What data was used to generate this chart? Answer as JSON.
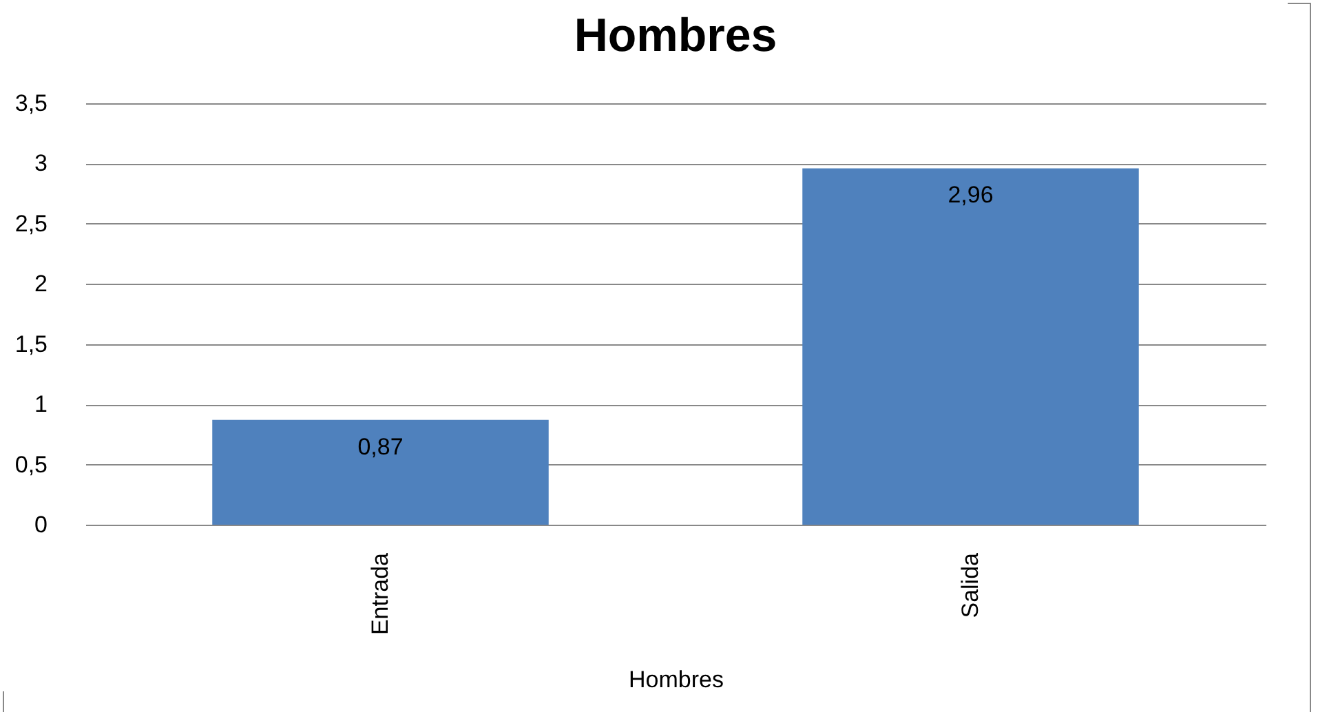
{
  "chart_data": {
    "type": "bar",
    "title": "Hombres",
    "xlabel": "Hombres",
    "categories": [
      "Entrada",
      "Salida"
    ],
    "values": [
      0.87,
      2.96
    ],
    "value_labels": [
      "0,87",
      "2,96"
    ],
    "color": "#4f81bd",
    "ylim": [
      0,
      3.5
    ],
    "yticks": [
      0,
      {
        "value": 0.5,
        "label": "0,5"
      },
      1,
      {
        "value": 1.5,
        "label": "1,5"
      },
      2,
      {
        "value": 2.5,
        "label": "2,5"
      },
      3,
      {
        "value": 3.5,
        "label": "3,5"
      }
    ],
    "grid": "y"
  }
}
